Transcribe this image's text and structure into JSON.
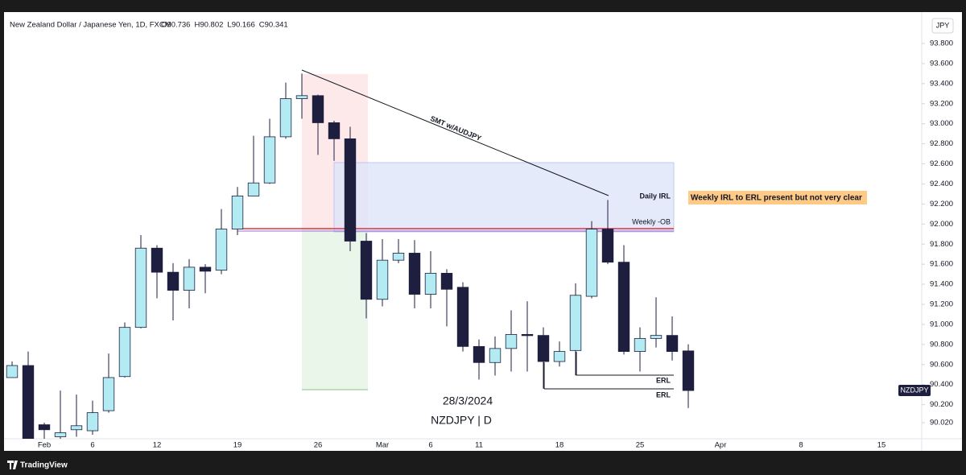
{
  "chart_data": {
    "type": "candlestick",
    "title": "New Zealand Dollar / Japanese Yen, 1D, FXCM",
    "ohlc_labels": [
      "O",
      "H",
      "L",
      "C"
    ],
    "currency_label": "JPY",
    "branding": "TradingView",
    "categories": [
      null,
      null,
      "Feb",
      null,
      null,
      "6",
      null,
      null,
      null,
      "12",
      null,
      null,
      null,
      null,
      "19",
      null,
      null,
      null,
      null,
      "26",
      null,
      null,
      null,
      "Mar",
      null,
      null,
      "6",
      null,
      null,
      "11",
      null,
      null,
      null,
      null,
      "18",
      null,
      null,
      null,
      null,
      "25",
      null,
      null,
      null,
      null,
      "Apr",
      null,
      null,
      null,
      null,
      "8",
      null,
      null,
      null,
      null,
      "15",
      null,
      null
    ],
    "series": [
      {
        "name": "NZDJPY",
        "up_color": "#b2ebf2",
        "down_color": "#1e1e3f",
        "open": [
          90.47,
          90.59,
          90.0,
          89.88,
          89.95,
          89.94,
          90.14,
          90.48,
          90.97,
          91.76,
          91.52,
          91.34,
          91.57,
          91.54,
          91.95,
          92.28,
          92.41,
          92.87,
          93.25,
          93.28,
          93.01,
          92.85,
          91.83,
          91.25,
          91.64,
          91.71,
          91.3,
          91.51,
          91.37,
          90.78,
          90.62,
          90.76,
          90.9,
          90.89,
          90.63,
          90.74,
          91.28,
          91.95,
          91.62,
          90.73,
          90.86,
          90.89,
          90.736,
          null,
          null,
          null,
          null,
          null,
          null,
          null,
          null,
          null,
          null,
          null,
          null,
          null,
          null
        ],
        "high": [
          90.63,
          90.73,
          90.02,
          90.34,
          90.3,
          90.24,
          90.71,
          91.02,
          91.89,
          91.79,
          91.61,
          91.65,
          91.6,
          92.15,
          92.37,
          92.88,
          93.05,
          93.41,
          93.5,
          93.29,
          93.03,
          92.97,
          91.91,
          91.85,
          91.85,
          91.84,
          91.73,
          91.55,
          91.42,
          90.85,
          90.88,
          91.14,
          91.23,
          90.97,
          90.83,
          91.41,
          92.03,
          92.24,
          91.79,
          90.97,
          91.27,
          91.08,
          90.802,
          null,
          null,
          null,
          null,
          null,
          null,
          null,
          null,
          null,
          null,
          null,
          null,
          null,
          null
        ],
        "low": [
          90.47,
          89.8,
          89.85,
          89.85,
          89.88,
          89.9,
          90.12,
          90.47,
          90.96,
          91.26,
          91.04,
          91.16,
          91.31,
          91.5,
          91.89,
          92.28,
          92.4,
          92.85,
          93.05,
          92.69,
          92.63,
          91.73,
          91.06,
          91.18,
          91.61,
          91.16,
          91.16,
          90.98,
          90.73,
          90.45,
          90.49,
          90.53,
          90.53,
          90.36,
          90.58,
          90.49,
          91.26,
          91.6,
          90.7,
          90.53,
          90.77,
          90.64,
          90.166,
          null,
          null,
          null,
          null,
          null,
          null,
          null,
          null,
          null,
          null,
          null,
          null,
          null,
          null
        ],
        "close": [
          90.59,
          89.85,
          89.95,
          89.92,
          89.99,
          90.12,
          90.47,
          90.97,
          91.76,
          91.52,
          91.34,
          91.57,
          91.53,
          91.95,
          92.28,
          92.41,
          92.87,
          93.25,
          93.28,
          93.01,
          92.85,
          91.83,
          91.25,
          91.64,
          91.71,
          91.3,
          91.51,
          91.35,
          90.78,
          90.62,
          90.76,
          90.9,
          90.89,
          90.63,
          90.73,
          91.29,
          91.95,
          91.62,
          90.73,
          90.86,
          90.89,
          90.73,
          90.341,
          null,
          null,
          null,
          null,
          null,
          null,
          null,
          null,
          null,
          null,
          null,
          null,
          null,
          null
        ]
      }
    ],
    "ylim": [
      89.86,
      94.113
    ],
    "yticks": [
      {
        "value": 93.8,
        "label": "93.800"
      },
      {
        "value": 93.6,
        "label": "93.600"
      },
      {
        "value": 93.4,
        "label": "93.400"
      },
      {
        "value": 93.2,
        "label": "93.200"
      },
      {
        "value": 93.0,
        "label": "93.000"
      },
      {
        "value": 92.8,
        "label": "92.800"
      },
      {
        "value": 92.6,
        "label": "92.600"
      },
      {
        "value": 92.4,
        "label": "92.400"
      },
      {
        "value": 92.2,
        "label": "92.200"
      },
      {
        "value": 92.0,
        "label": "92.000"
      },
      {
        "value": 91.8,
        "label": "91.800"
      },
      {
        "value": 91.6,
        "label": "91.600"
      },
      {
        "value": 91.4,
        "label": "91.400"
      },
      {
        "value": 91.2,
        "label": "91.200"
      },
      {
        "value": 91.0,
        "label": "91.000"
      },
      {
        "value": 90.8,
        "label": "90.800"
      },
      {
        "value": 90.6,
        "label": "90.600"
      },
      {
        "value": 90.4,
        "label": "90.400"
      },
      {
        "value": 90.2,
        "label": "90.200"
      },
      {
        "value": 90.02,
        "label": "90.020"
      }
    ],
    "grid": false,
    "annotations": {
      "smt": "SMT w/AUDJPY",
      "daily_irl": "Daily IRL",
      "weekly_ob": "Weekly -OB",
      "note": "Weekly IRL to ERL present but not very clear",
      "erl_upper": "ERL",
      "erl_lower": "ERL",
      "date": "28/3/2024",
      "symbol_timeframe": "NZDJPY | D"
    }
  }
}
